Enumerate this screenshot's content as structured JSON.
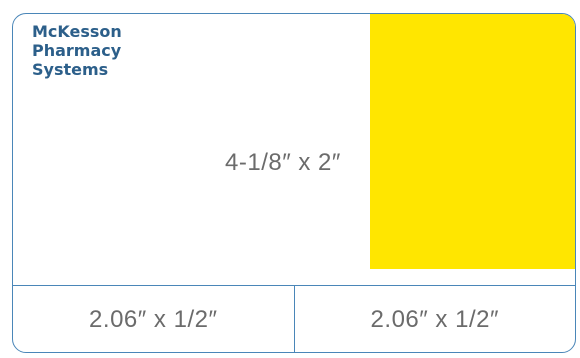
{
  "brand": {
    "lines": [
      "McKesson",
      "Pharmacy",
      "Systems"
    ]
  },
  "main_label": {
    "dimension": "4-1/8″ x 2″"
  },
  "bottom_labels": [
    {
      "dimension": "2.06″ x 1/2″"
    },
    {
      "dimension": "2.06″ x 1/2″"
    }
  ],
  "colors": {
    "border": "#4a86b8",
    "brand_text": "#2c5f8a",
    "highlight": "#ffe600",
    "dimension_text": "#6b6b6b"
  }
}
